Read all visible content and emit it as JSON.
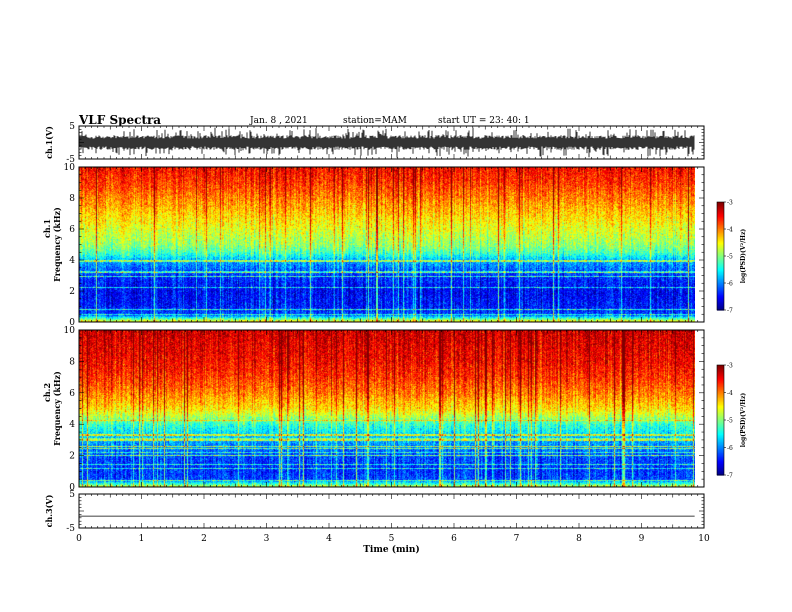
{
  "header": {
    "title": "VLF Spectra",
    "date": "Jan. 8 , 2021",
    "station": "station=MAM",
    "start": "start UT = 23: 40: 1"
  },
  "chart_data": {
    "type": "heatmap",
    "xlabel": "Time (min)",
    "xlim": [
      0,
      10
    ],
    "x_ticks": [
      "0",
      "1",
      "2",
      "3",
      "4",
      "5",
      "6",
      "7",
      "8",
      "9",
      "10"
    ],
    "panels": [
      {
        "type": "line",
        "ylabel": "ch.1(V)",
        "ylim": [
          -5,
          5
        ],
        "y_ticks": [
          "5",
          "-5"
        ],
        "description_values": {
          "envelope_upper": 2,
          "envelope_lower": -2
        }
      },
      {
        "type": "heatmap",
        "ylabel_top": "ch.1",
        "ylabel": "Frequency (kHz)",
        "ylim": [
          0,
          10
        ],
        "y_ticks": [
          "0",
          "2",
          "4",
          "6",
          "8",
          "10"
        ],
        "x_extent": [
          0,
          9.85
        ],
        "colorbar": {
          "label": "log(PSD)(V²/Hz)",
          "range": [
            -7,
            -3
          ],
          "ticks": [
            "-3",
            "-4",
            "-5",
            "-6",
            "-7"
          ]
        },
        "profile_log_psd": [
          [
            0,
            -4.2
          ],
          [
            0.5,
            -6.2
          ],
          [
            1,
            -6.4
          ],
          [
            2,
            -6.5
          ],
          [
            3,
            -6.3
          ],
          [
            4,
            -5.8
          ],
          [
            4.5,
            -5.2
          ],
          [
            5,
            -4.9
          ],
          [
            6,
            -4.6
          ],
          [
            7,
            -4.3
          ],
          [
            8,
            -4.0
          ],
          [
            9,
            -3.7
          ],
          [
            10,
            -3.5
          ]
        ]
      },
      {
        "type": "heatmap",
        "ylabel_top": "ch.2",
        "ylabel": "Frequency (kHz)",
        "ylim": [
          0,
          10
        ],
        "y_ticks": [
          "0",
          "2",
          "4",
          "6",
          "8",
          "10"
        ],
        "x_extent": [
          0,
          9.85
        ],
        "colorbar": {
          "label": "log(PSD)(V²/Hz)",
          "range": [
            -7,
            -3
          ],
          "ticks": [
            "-3",
            "-4",
            "-5",
            "-6",
            "-7"
          ]
        },
        "profile_log_psd": [
          [
            0,
            -4.5
          ],
          [
            0.5,
            -6.2
          ],
          [
            1,
            -6.3
          ],
          [
            2,
            -6.2
          ],
          [
            3,
            -5.8
          ],
          [
            4,
            -5.3
          ],
          [
            4.5,
            -4.8
          ],
          [
            5,
            -4.4
          ],
          [
            6,
            -4.0
          ],
          [
            7,
            -3.7
          ],
          [
            8,
            -3.5
          ],
          [
            9,
            -3.4
          ],
          [
            10,
            -3.3
          ]
        ]
      },
      {
        "type": "line",
        "ylabel": "ch.3(V)",
        "ylim": [
          -5,
          5
        ],
        "y_ticks": [
          "5",
          "-5"
        ],
        "description_values": {
          "flat_level": -1.5
        }
      }
    ]
  }
}
